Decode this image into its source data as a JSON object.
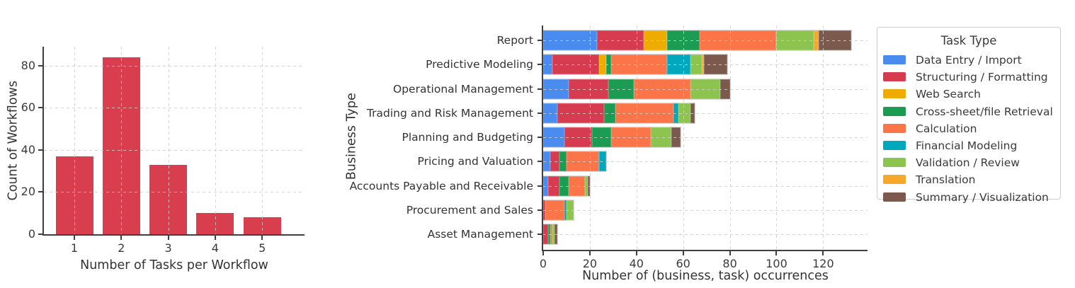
{
  "page": {
    "background": "#ffffff"
  },
  "chart_data": [
    {
      "type": "bar",
      "title": "",
      "categories": [
        "1",
        "2",
        "3",
        "4",
        "5"
      ],
      "values": [
        37,
        84,
        33,
        10,
        8
      ],
      "bar_color": "#d93e4f",
      "xlabel": "Number of Tasks per Workflow",
      "ylabel": "Count of Workflows",
      "yticks": [
        0,
        20,
        40,
        60,
        80
      ],
      "ylim": [
        0,
        89
      ],
      "grid": "dashed",
      "legend": "none"
    },
    {
      "type": "stacked-barh",
      "title": "",
      "categories": [
        "Report",
        "Predictive Modeling",
        "Operational Management",
        "Trading and Risk Management",
        "Planning and Budgeting",
        "Pricing and Valuation",
        "Accounts Payable and Receivable",
        "Procurement and Sales",
        "Asset Management"
      ],
      "series": [
        {
          "name": "Data Entry / Import",
          "color": "#4a8bf0",
          "values": [
            23,
            4,
            11,
            6,
            9,
            3,
            2,
            0,
            0
          ]
        },
        {
          "name": "Structuring / Formatting",
          "color": "#d63b4f",
          "values": [
            20,
            20,
            17,
            20,
            12,
            4,
            5,
            1,
            2
          ]
        },
        {
          "name": "Web Search",
          "color": "#efac00",
          "values": [
            10,
            3,
            0,
            0,
            0,
            0,
            0,
            0,
            0
          ]
        },
        {
          "name": "Cross-sheet/file Retrieval",
          "color": "#1c9b52",
          "values": [
            14,
            2,
            11,
            5,
            8,
            3,
            4,
            0,
            1
          ]
        },
        {
          "name": "Calculation",
          "color": "#fb7548",
          "values": [
            33,
            24,
            24,
            25,
            17,
            14,
            7,
            8,
            1
          ]
        },
        {
          "name": "Financial Modeling",
          "color": "#00a8bd",
          "values": [
            0,
            10,
            0,
            2,
            0,
            3,
            0,
            1,
            0
          ]
        },
        {
          "name": "Validation / Review",
          "color": "#8dc44f",
          "values": [
            16,
            5,
            13,
            5,
            9,
            0,
            1,
            3,
            1
          ]
        },
        {
          "name": "Translation",
          "color": "#f5a82a",
          "values": [
            2,
            1,
            0,
            0,
            0,
            0,
            0,
            0,
            0
          ]
        },
        {
          "name": "Summary / Visualization",
          "color": "#7b594c",
          "values": [
            14,
            10,
            4,
            2,
            4,
            0,
            1,
            0,
            1
          ]
        }
      ],
      "xlabel": "Number of (business, task) occurrences",
      "ylabel": "Business Type",
      "xticks": [
        0,
        20,
        40,
        60,
        80,
        100,
        120
      ],
      "xlim": [
        0,
        139
      ],
      "grid": "dashed",
      "legend_title": "Task Type",
      "legend_position": "right"
    }
  ]
}
